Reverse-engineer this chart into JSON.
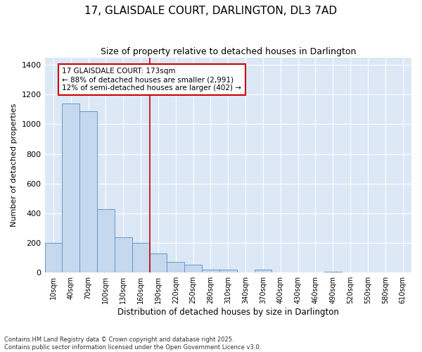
{
  "title1": "17, GLAISDALE COURT, DARLINGTON, DL3 7AD",
  "title2": "Size of property relative to detached houses in Darlington",
  "xlabel": "Distribution of detached houses by size in Darlington",
  "ylabel": "Number of detached properties",
  "bins": [
    "10sqm",
    "40sqm",
    "70sqm",
    "100sqm",
    "130sqm",
    "160sqm",
    "190sqm",
    "220sqm",
    "250sqm",
    "280sqm",
    "310sqm",
    "340sqm",
    "370sqm",
    "400sqm",
    "430sqm",
    "460sqm",
    "490sqm",
    "520sqm",
    "550sqm",
    "580sqm",
    "610sqm"
  ],
  "values": [
    200,
    1140,
    1090,
    430,
    240,
    200,
    130,
    70,
    55,
    20,
    20,
    0,
    20,
    0,
    0,
    0,
    5,
    0,
    0,
    0,
    0
  ],
  "bar_color": "#c5d8ed",
  "bar_edge_color": "#6699cc",
  "fig_bg_color": "#ffffff",
  "plot_bg_color": "#dce8f5",
  "annotation_title": "17 GLAISDALE COURT: 173sqm",
  "annotation_line1": "← 88% of detached houses are smaller (2,991)",
  "annotation_line2": "12% of semi-detached houses are larger (402) →",
  "annotation_box_facecolor": "#ffffff",
  "annotation_box_edgecolor": "#cc0000",
  "red_line_color": "#cc0000",
  "red_line_x": 6,
  "ylim": [
    0,
    1450
  ],
  "yticks": [
    0,
    200,
    400,
    600,
    800,
    1000,
    1200,
    1400
  ],
  "footnote1": "Contains HM Land Registry data © Crown copyright and database right 2025.",
  "footnote2": "Contains public sector information licensed under the Open Government Licence v3.0."
}
